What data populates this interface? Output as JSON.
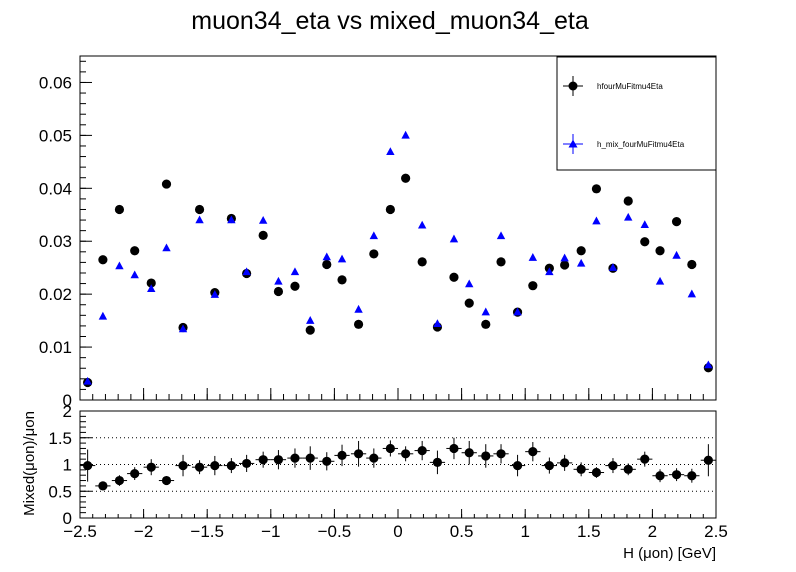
{
  "chart_data": [
    {
      "type": "scatter",
      "title": "muon34_eta vs mixed_muon34_eta",
      "xlim": [
        -2.5,
        2.5
      ],
      "ylim": [
        0,
        0.065
      ],
      "y_ticks": [
        "0",
        "0.01",
        "0.02",
        "0.03",
        "0.04",
        "0.05",
        "0.06"
      ],
      "y_tick_values": [
        0,
        0.01,
        0.02,
        0.03,
        0.04,
        0.05,
        0.06
      ],
      "legend_position": "top-right",
      "x": [
        -2.44,
        -2.32,
        -2.19,
        -2.07,
        -1.94,
        -1.82,
        -1.69,
        -1.56,
        -1.44,
        -1.31,
        -1.19,
        -1.06,
        -0.94,
        -0.81,
        -0.69,
        -0.56,
        -0.44,
        -0.31,
        -0.19,
        -0.06,
        0.06,
        0.19,
        0.31,
        0.44,
        0.56,
        0.69,
        0.81,
        0.94,
        1.06,
        1.19,
        1.31,
        1.44,
        1.56,
        1.69,
        1.81,
        1.94,
        2.06,
        2.19,
        2.31,
        2.44
      ],
      "series": [
        {
          "name": "hfourMuFitmu4Eta",
          "color": "#000000",
          "marker": "circle",
          "values": [
            0.0033,
            0.0265,
            0.036,
            0.0282,
            0.0221,
            0.0408,
            0.0137,
            0.036,
            0.0203,
            0.0343,
            0.0239,
            0.0311,
            0.0205,
            0.0215,
            0.0132,
            0.0256,
            0.0227,
            0.0143,
            0.0276,
            0.036,
            0.0419,
            0.0261,
            0.0138,
            0.0232,
            0.0183,
            0.0143,
            0.0261,
            0.0166,
            0.0216,
            0.0249,
            0.0255,
            0.0282,
            0.0399,
            0.0249,
            0.0376,
            0.0299,
            0.0282,
            0.0337,
            0.0256,
            0.0061
          ]
        },
        {
          "name": "h_mix_fourMuFitmu4Eta",
          "color": "#0000ff",
          "marker": "triangle",
          "values": [
            0.0035,
            0.0158,
            0.0253,
            0.0236,
            0.021,
            0.0287,
            0.0134,
            0.034,
            0.0199,
            0.034,
            0.0242,
            0.0339,
            0.0224,
            0.0242,
            0.015,
            0.027,
            0.0266,
            0.0171,
            0.031,
            0.0469,
            0.05,
            0.033,
            0.0144,
            0.0304,
            0.0219,
            0.0166,
            0.031,
            0.0166,
            0.0269,
            0.0242,
            0.0268,
            0.0258,
            0.0338,
            0.025,
            0.0345,
            0.0331,
            0.0224,
            0.0273,
            0.02,
            0.0066
          ]
        }
      ]
    },
    {
      "type": "scatter",
      "xlabel": "H (μon) [GeV]",
      "ylabel": "Mixed(μon)/μon",
      "xlim": [
        -2.5,
        2.5
      ],
      "ylim": [
        0,
        2
      ],
      "x_ticks": [
        "−2.5",
        "−2",
        "−1.5",
        "−1",
        "−0.5",
        "0",
        "0.5",
        "1",
        "1.5",
        "2",
        "2.5"
      ],
      "x_tick_values": [
        -2.5,
        -2,
        -1.5,
        -1,
        -0.5,
        0,
        0.5,
        1,
        1.5,
        2,
        2.5
      ],
      "y_ticks": [
        "0",
        "0.5",
        "1",
        "1.5",
        "2"
      ],
      "y_tick_values": [
        0,
        0.5,
        1,
        1.5,
        2
      ],
      "reference_lines": [
        0.5,
        1,
        1.5
      ],
      "x": [
        -2.44,
        -2.32,
        -2.19,
        -2.07,
        -1.94,
        -1.82,
        -1.69,
        -1.56,
        -1.44,
        -1.31,
        -1.19,
        -1.06,
        -0.94,
        -0.81,
        -0.69,
        -0.56,
        -0.44,
        -0.31,
        -0.19,
        -0.06,
        0.06,
        0.19,
        0.31,
        0.44,
        0.56,
        0.69,
        0.81,
        0.94,
        1.06,
        1.19,
        1.31,
        1.44,
        1.56,
        1.69,
        1.81,
        1.94,
        2.06,
        2.19,
        2.31,
        2.44
      ],
      "series": [
        {
          "color": "#000000",
          "marker": "circle",
          "values": [
            0.98,
            0.6,
            0.7,
            0.83,
            0.95,
            0.7,
            0.98,
            0.95,
            0.98,
            0.98,
            1.02,
            1.09,
            1.09,
            1.12,
            1.12,
            1.06,
            1.17,
            1.2,
            1.12,
            1.3,
            1.2,
            1.26,
            1.04,
            1.3,
            1.22,
            1.16,
            1.2,
            0.98,
            1.24,
            0.98,
            1.03,
            0.91,
            0.85,
            0.98,
            0.91,
            1.1,
            0.79,
            0.81,
            0.79,
            1.08
          ],
          "errors": [
            0.3,
            0.08,
            0.1,
            0.12,
            0.15,
            0.08,
            0.2,
            0.13,
            0.18,
            0.14,
            0.16,
            0.15,
            0.18,
            0.18,
            0.22,
            0.17,
            0.2,
            0.24,
            0.18,
            0.15,
            0.14,
            0.18,
            0.22,
            0.2,
            0.22,
            0.22,
            0.18,
            0.2,
            0.18,
            0.15,
            0.15,
            0.13,
            0.1,
            0.14,
            0.11,
            0.14,
            0.12,
            0.12,
            0.13,
            0.3
          ]
        }
      ]
    }
  ]
}
